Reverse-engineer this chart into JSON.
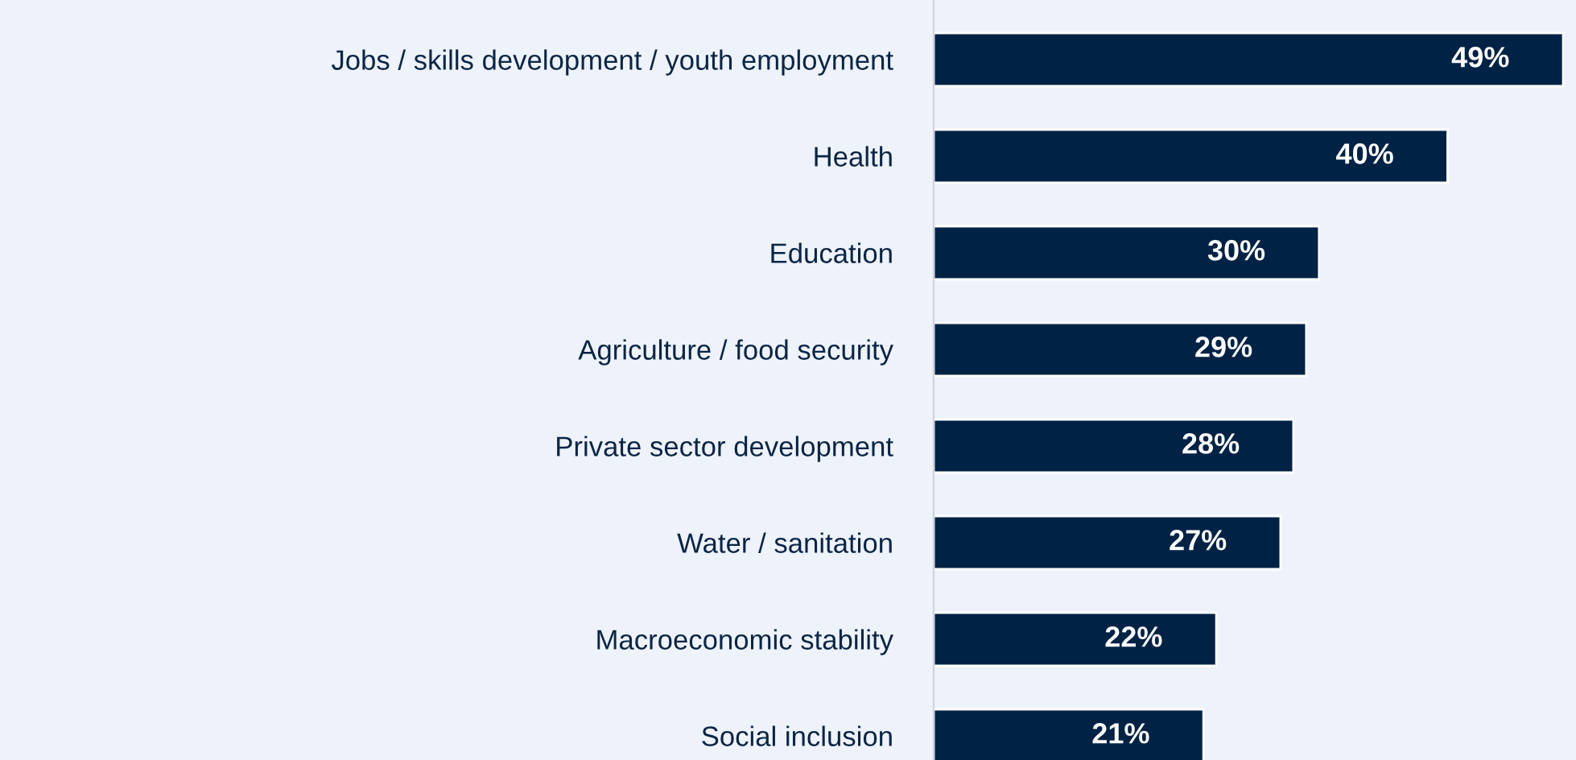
{
  "chart_data": {
    "type": "bar",
    "orientation": "horizontal",
    "categories": [
      "Jobs / skills development / youth employment",
      "Health",
      "Education",
      "Agriculture / food security",
      "Private sector development",
      "Water / sanitation",
      "Macroeconomic stability",
      "Social inclusion"
    ],
    "values": [
      49,
      40,
      30,
      29,
      28,
      27,
      22,
      21
    ],
    "value_labels": [
      "49%",
      "40%",
      "30%",
      "29%",
      "28%",
      "27%",
      "22%",
      "21%"
    ],
    "color": "#002244",
    "xlim": [
      0,
      50
    ],
    "tick_labels": "y",
    "grid": false,
    "legend": false
  }
}
